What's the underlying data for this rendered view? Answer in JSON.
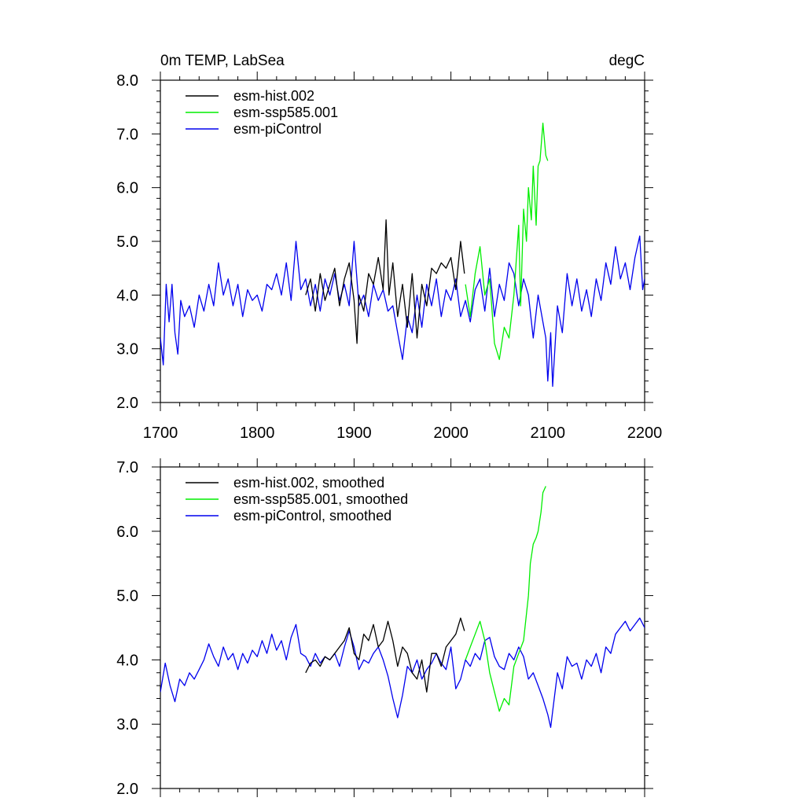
{
  "title_left": "0m TEMP, LabSea",
  "title_right": "degC",
  "colors": {
    "hist": "#000000",
    "ssp": "#00ee00",
    "pi": "#0000ee"
  },
  "chart_data": [
    {
      "type": "line",
      "xlim": [
        1700,
        2200
      ],
      "ylim": [
        2.0,
        8.0
      ],
      "x_ticks": [
        "1700",
        "1800",
        "1900",
        "2000",
        "2100",
        "2200"
      ],
      "y_ticks": [
        "2.0",
        "3.0",
        "4.0",
        "5.0",
        "6.0",
        "7.0",
        "8.0"
      ],
      "legend_position": "top-left",
      "series": [
        {
          "name": "esm-hist.002",
          "color_key": "hist",
          "x": [
            1850,
            1855,
            1860,
            1865,
            1870,
            1875,
            1880,
            1885,
            1890,
            1895,
            1900,
            1903,
            1905,
            1910,
            1915,
            1920,
            1925,
            1930,
            1933,
            1936,
            1940,
            1945,
            1950,
            1955,
            1960,
            1965,
            1970,
            1975,
            1980,
            1985,
            1990,
            1995,
            2000,
            2005,
            2010,
            2014
          ],
          "y": [
            4.0,
            4.3,
            3.7,
            4.4,
            3.9,
            4.2,
            4.5,
            3.8,
            4.3,
            4.6,
            3.9,
            3.1,
            4.0,
            3.7,
            4.4,
            4.2,
            4.7,
            4.1,
            5.4,
            4.0,
            4.6,
            3.6,
            4.2,
            3.4,
            4.4,
            3.2,
            4.2,
            3.8,
            4.5,
            4.4,
            4.6,
            4.5,
            4.7,
            4.1,
            5.0,
            4.4
          ]
        },
        {
          "name": "esm-ssp585.001",
          "color_key": "ssp",
          "x": [
            2015,
            2020,
            2025,
            2030,
            2035,
            2040,
            2045,
            2050,
            2055,
            2060,
            2065,
            2070,
            2072,
            2075,
            2078,
            2080,
            2083,
            2085,
            2088,
            2090,
            2092,
            2095,
            2098,
            2100
          ],
          "y": [
            4.2,
            3.6,
            4.4,
            4.9,
            4.0,
            4.3,
            3.1,
            2.8,
            3.4,
            3.2,
            4.0,
            5.3,
            3.8,
            5.6,
            5.0,
            6.0,
            5.4,
            6.4,
            5.3,
            6.4,
            6.5,
            7.2,
            6.6,
            6.5
          ]
        },
        {
          "name": "esm-piControl",
          "color_key": "pi",
          "x": [
            1700,
            1703,
            1706,
            1709,
            1712,
            1715,
            1718,
            1721,
            1725,
            1730,
            1735,
            1740,
            1745,
            1750,
            1755,
            1760,
            1765,
            1770,
            1775,
            1780,
            1785,
            1790,
            1795,
            1800,
            1805,
            1810,
            1815,
            1820,
            1825,
            1830,
            1835,
            1840,
            1845,
            1850,
            1855,
            1860,
            1865,
            1870,
            1875,
            1880,
            1885,
            1890,
            1895,
            1900,
            1905,
            1910,
            1915,
            1920,
            1925,
            1930,
            1935,
            1940,
            1945,
            1950,
            1955,
            1960,
            1965,
            1970,
            1975,
            1980,
            1985,
            1990,
            1995,
            2000,
            2005,
            2010,
            2015,
            2020,
            2025,
            2030,
            2035,
            2040,
            2045,
            2050,
            2055,
            2060,
            2065,
            2070,
            2075,
            2080,
            2085,
            2090,
            2095,
            2098,
            2100,
            2103,
            2105,
            2110,
            2115,
            2120,
            2125,
            2130,
            2135,
            2140,
            2145,
            2150,
            2155,
            2160,
            2165,
            2170,
            2175,
            2180,
            2185,
            2190,
            2195,
            2198,
            2200
          ],
          "y": [
            3.2,
            2.7,
            4.2,
            3.5,
            4.2,
            3.3,
            2.9,
            3.9,
            3.6,
            3.8,
            3.4,
            4.0,
            3.7,
            4.2,
            3.8,
            4.6,
            4.0,
            4.3,
            3.8,
            4.2,
            3.6,
            4.1,
            3.9,
            4.0,
            3.7,
            4.2,
            4.1,
            4.4,
            4.0,
            4.6,
            3.9,
            5.0,
            4.1,
            4.3,
            3.8,
            4.2,
            3.7,
            4.3,
            4.0,
            4.4,
            3.9,
            4.2,
            3.8,
            5.0,
            3.8,
            4.0,
            3.6,
            4.2,
            3.9,
            4.1,
            3.7,
            3.8,
            3.3,
            2.8,
            3.6,
            3.3,
            4.0,
            3.4,
            4.2,
            3.8,
            4.3,
            3.6,
            4.1,
            3.9,
            4.3,
            3.6,
            3.9,
            3.5,
            4.1,
            4.3,
            3.7,
            4.5,
            3.6,
            4.2,
            3.9,
            4.6,
            4.4,
            3.8,
            4.3,
            4.0,
            3.2,
            4.0,
            3.5,
            3.2,
            2.4,
            3.3,
            2.3,
            3.8,
            3.3,
            4.4,
            3.8,
            4.3,
            3.7,
            4.1,
            3.6,
            4.3,
            3.9,
            4.6,
            4.2,
            4.9,
            4.3,
            4.6,
            4.1,
            4.7,
            5.1,
            4.1,
            4.3
          ]
        }
      ]
    },
    {
      "type": "line",
      "xlim": [
        1700,
        2200
      ],
      "ylim": [
        2.0,
        7.0
      ],
      "x_ticks": [],
      "y_ticks": [
        "2.0",
        "3.0",
        "4.0",
        "5.0",
        "6.0",
        "7.0"
      ],
      "legend_position": "top-left",
      "series": [
        {
          "name": "esm-hist.002, smoothed",
          "color_key": "hist",
          "x": [
            1850,
            1855,
            1860,
            1865,
            1870,
            1875,
            1880,
            1885,
            1890,
            1895,
            1900,
            1905,
            1910,
            1915,
            1920,
            1925,
            1930,
            1935,
            1940,
            1945,
            1950,
            1955,
            1960,
            1965,
            1970,
            1975,
            1980,
            1985,
            1990,
            1995,
            2000,
            2005,
            2010,
            2014
          ],
          "y": [
            3.8,
            3.95,
            4.0,
            3.9,
            4.05,
            4.0,
            4.1,
            4.2,
            4.3,
            4.5,
            4.1,
            4.0,
            4.4,
            4.3,
            4.55,
            4.2,
            4.3,
            4.6,
            4.3,
            3.9,
            4.2,
            4.1,
            3.8,
            3.7,
            4.0,
            3.5,
            4.1,
            4.1,
            3.9,
            4.2,
            4.3,
            4.4,
            4.65,
            4.45
          ]
        },
        {
          "name": "esm-ssp585.001, smoothed",
          "color_key": "ssp",
          "x": [
            2015,
            2020,
            2025,
            2030,
            2035,
            2040,
            2045,
            2050,
            2055,
            2060,
            2065,
            2070,
            2075,
            2080,
            2082,
            2085,
            2088,
            2090,
            2093,
            2095,
            2098
          ],
          "y": [
            4.0,
            4.2,
            4.4,
            4.6,
            4.3,
            3.8,
            3.5,
            3.2,
            3.4,
            3.3,
            3.9,
            4.1,
            4.3,
            5.0,
            5.5,
            5.8,
            5.9,
            6.0,
            6.3,
            6.6,
            6.7
          ]
        },
        {
          "name": "esm-piControl, smoothed",
          "color_key": "pi",
          "x": [
            1700,
            1705,
            1710,
            1715,
            1720,
            1725,
            1730,
            1735,
            1740,
            1745,
            1750,
            1755,
            1760,
            1765,
            1770,
            1775,
            1780,
            1785,
            1790,
            1795,
            1800,
            1805,
            1810,
            1815,
            1820,
            1825,
            1830,
            1835,
            1840,
            1845,
            1850,
            1855,
            1860,
            1865,
            1870,
            1875,
            1880,
            1885,
            1890,
            1895,
            1900,
            1905,
            1910,
            1915,
            1920,
            1925,
            1930,
            1935,
            1940,
            1945,
            1950,
            1955,
            1960,
            1965,
            1970,
            1975,
            1980,
            1985,
            1990,
            1995,
            2000,
            2005,
            2010,
            2015,
            2020,
            2025,
            2030,
            2035,
            2040,
            2045,
            2050,
            2055,
            2060,
            2065,
            2070,
            2075,
            2080,
            2085,
            2090,
            2095,
            2100,
            2103,
            2105,
            2110,
            2115,
            2120,
            2125,
            2130,
            2135,
            2140,
            2145,
            2150,
            2155,
            2160,
            2165,
            2170,
            2175,
            2180,
            2185,
            2190,
            2195,
            2200
          ],
          "y": [
            3.5,
            3.95,
            3.6,
            3.35,
            3.7,
            3.6,
            3.8,
            3.7,
            3.85,
            4.0,
            4.25,
            4.05,
            3.9,
            4.2,
            4.0,
            4.1,
            3.85,
            4.1,
            3.95,
            4.15,
            4.05,
            4.3,
            4.1,
            4.4,
            4.15,
            4.3,
            4.0,
            4.35,
            4.55,
            4.1,
            4.05,
            3.9,
            4.1,
            3.95,
            4.05,
            4.0,
            4.1,
            3.9,
            4.2,
            4.45,
            4.2,
            3.85,
            4.0,
            3.95,
            4.1,
            4.2,
            4.0,
            3.75,
            3.4,
            3.1,
            3.45,
            3.9,
            3.8,
            4.0,
            3.7,
            3.85,
            3.95,
            4.1,
            3.95,
            3.85,
            4.2,
            3.55,
            3.7,
            4.0,
            3.9,
            4.1,
            4.0,
            4.3,
            4.35,
            4.05,
            3.9,
            3.85,
            4.1,
            4.0,
            4.2,
            4.05,
            3.7,
            3.8,
            3.6,
            3.4,
            3.15,
            2.95,
            3.2,
            3.8,
            3.55,
            4.05,
            3.9,
            3.95,
            3.7,
            4.0,
            3.9,
            4.1,
            3.8,
            4.2,
            4.1,
            4.4,
            4.5,
            4.6,
            4.45,
            4.55,
            4.65,
            4.5
          ]
        }
      ]
    }
  ]
}
